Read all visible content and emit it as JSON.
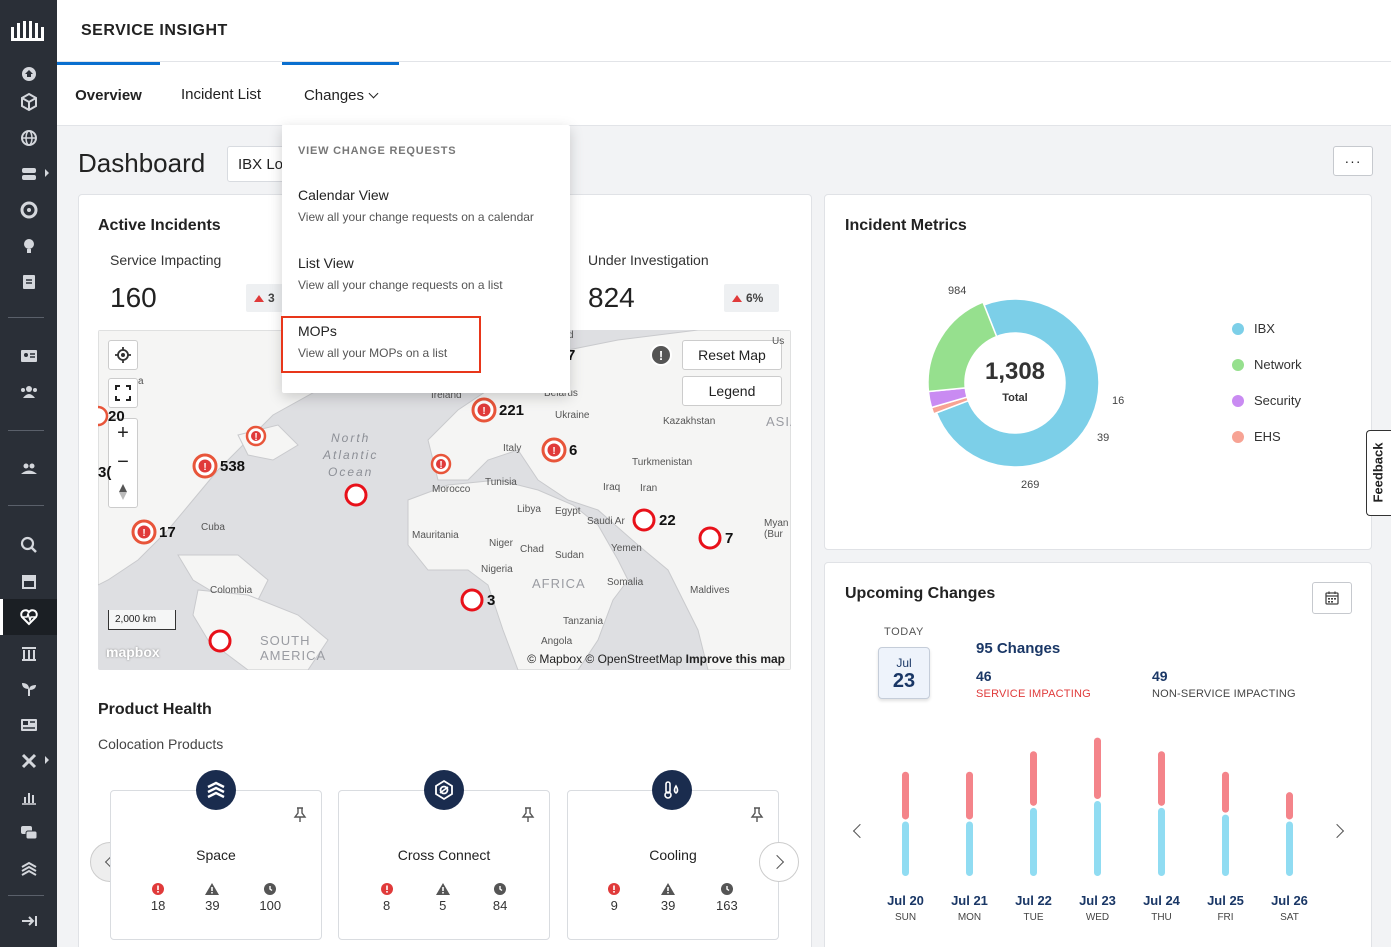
{
  "app": {
    "title": "SERVICE INSIGHT"
  },
  "tabs": [
    {
      "label": "Overview"
    },
    {
      "label": "Incident List"
    },
    {
      "label": "Changes"
    }
  ],
  "dashboard": {
    "title": "Dashboard",
    "ibx_select_value": "IBX Lo",
    "more_label": "···"
  },
  "dropdown": {
    "heading": "VIEW CHANGE REQUESTS",
    "items": [
      {
        "title": "Calendar View",
        "desc": "View all your change requests on a calendar"
      },
      {
        "title": "List View",
        "desc": "View all your change requests on a list"
      },
      {
        "title": "MOPs",
        "desc": "View all your MOPs on a list"
      }
    ]
  },
  "active_incidents": {
    "title": "Active Incidents",
    "service_impacting": {
      "label": "Service Impacting",
      "value": "160",
      "badge": "3"
    },
    "under_investigation": {
      "label": "Under Investigation",
      "value": "824",
      "badge": "6%"
    }
  },
  "map": {
    "reset_label": "Reset Map",
    "legend_label": "Legend",
    "scale_label": "2,000 km",
    "mapbox_label": "mapbox",
    "attribution": "© Mapbox © OpenStreetMap",
    "improve_label": "Improve this map",
    "ocean_label": "North\nAtlantic\nOcean",
    "south_america": "SOUTH\nAMERICA",
    "africa": "AFRICA",
    "asia": "ASIA",
    "places": [
      "Ireland",
      "Belarus",
      "Ukraine",
      "Kazakhstan",
      "Italy",
      "Turkmenistan",
      "Morocco",
      "Tunisia",
      "Iraq",
      "Iran",
      "Libya",
      "Egypt",
      "Saudi Ar",
      "Mauritania",
      "Niger",
      "Chad",
      "Sudan",
      "Yemen",
      "Nigeria",
      "Somalia",
      "Maldives",
      "Tanzania",
      "Angola",
      "Colombia",
      "Cuba",
      "Myan\n(Bur"
    ],
    "markers": [
      {
        "kind": "alert",
        "label": "221"
      },
      {
        "kind": "alert",
        "label": "6"
      },
      {
        "kind": "alert",
        "label": "538"
      },
      {
        "kind": "alert",
        "label": "17"
      },
      {
        "kind": "alert",
        "label": ""
      },
      {
        "kind": "alert",
        "label": ""
      },
      {
        "kind": "ring",
        "label": "22"
      },
      {
        "kind": "ring",
        "label": "7"
      },
      {
        "kind": "ring",
        "label": "3"
      },
      {
        "kind": "ring",
        "label": ""
      },
      {
        "kind": "ring",
        "label": ""
      },
      {
        "kind": "alert",
        "label": "20"
      },
      {
        "kind": "alert",
        "label": "3("
      },
      {
        "kind": "alert",
        "label": "7"
      }
    ],
    "partial_labels": {
      "d": "d",
      "us": "Us",
      "a": "a"
    }
  },
  "product_health": {
    "title": "Product Health",
    "subtitle": "Colocation Products",
    "products": [
      {
        "name": "Space",
        "icon": "layers-icon",
        "critical": "18",
        "warning": "39",
        "pending": "100"
      },
      {
        "name": "Cross Connect",
        "icon": "cross-connect-icon",
        "critical": "8",
        "warning": "5",
        "pending": "84"
      },
      {
        "name": "Cooling",
        "icon": "thermometer-drop-icon",
        "critical": "9",
        "warning": "39",
        "pending": "163"
      }
    ]
  },
  "incident_metrics": {
    "title": "Incident Metrics",
    "total": "1,308",
    "total_label": "Total",
    "segments": [
      {
        "name": "IBX",
        "value": 984,
        "label": "984",
        "color": "#7ccfe8"
      },
      {
        "name": "Network",
        "value": 269,
        "label": "269",
        "color": "#96e08e"
      },
      {
        "name": "Security",
        "value": 39,
        "label": "39",
        "color": "#c98bf2"
      },
      {
        "name": "EHS",
        "value": 16,
        "label": "16",
        "color": "#f7a394"
      }
    ]
  },
  "feedback": {
    "label": "Feedback"
  },
  "upcoming_changes": {
    "title": "Upcoming Changes",
    "today_label": "TODAY",
    "today_month": "Jul",
    "today_day": "23",
    "total_label": "95 Changes",
    "service_impacting": {
      "value": "46",
      "label": "SERVICE IMPACTING"
    },
    "non_service_impacting": {
      "value": "49",
      "label": "NON-SERVICE IMPACTING"
    },
    "days": [
      {
        "date": "Jul 20",
        "dow": "SUN",
        "impacting": 7,
        "non_impacting": 8
      },
      {
        "date": "Jul 21",
        "dow": "MON",
        "impacting": 7,
        "non_impacting": 8
      },
      {
        "date": "Jul 22",
        "dow": "TUE",
        "impacting": 8,
        "non_impacting": 10
      },
      {
        "date": "Jul 23",
        "dow": "WED",
        "impacting": 9,
        "non_impacting": 11
      },
      {
        "date": "Jul 24",
        "dow": "THU",
        "impacting": 8,
        "non_impacting": 10
      },
      {
        "date": "Jul 25",
        "dow": "FRI",
        "impacting": 6,
        "non_impacting": 9
      },
      {
        "date": "Jul 26",
        "dow": "SAT",
        "impacting": 4,
        "non_impacting": 8
      }
    ],
    "colors": {
      "impacting": "#f4848a",
      "non_impacting": "#90dcf2"
    }
  }
}
